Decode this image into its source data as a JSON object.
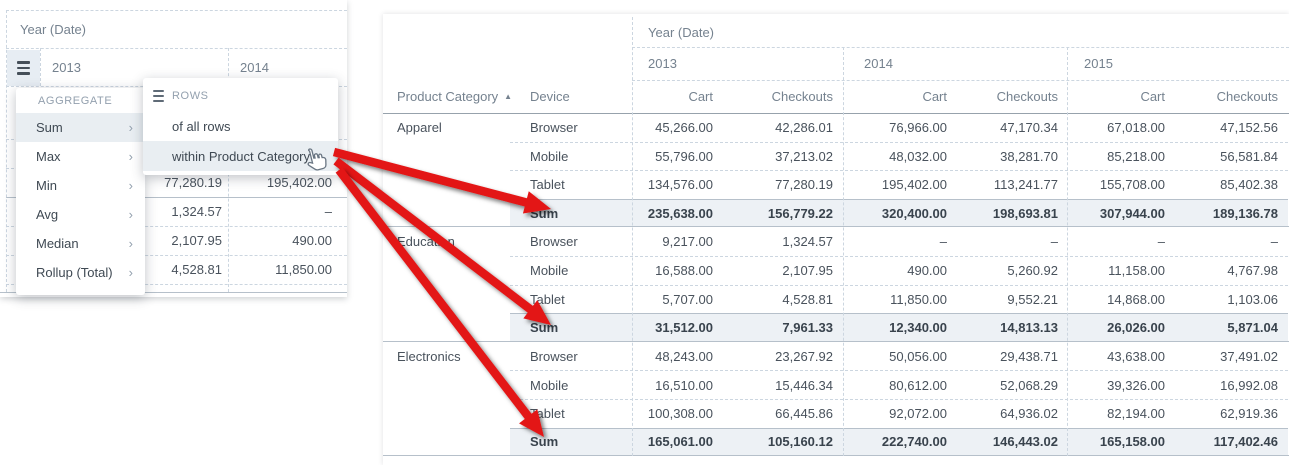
{
  "icons": {
    "menu_chevron": "›",
    "sort_ascending": "▲",
    "hamburger": "menu-bars",
    "rows": "rows-bars",
    "cursor": "pointing-hand"
  },
  "colors": {
    "arrow_red": "#e31414",
    "sum_row_bg": "#edf1f5",
    "menu_highlight_bg": "#e9eef2",
    "dashed_line": "#ccd6e0",
    "solid_line": "#b6c0ca",
    "header_text": "#75828f",
    "body_text": "#49525c"
  },
  "left_panel": {
    "field_label": "Year (Date)",
    "years": [
      "2013",
      "2014"
    ],
    "aggregate_menu": {
      "section_label": "AGGREGATE",
      "items": [
        {
          "label": "Sum",
          "selected": true
        },
        {
          "label": "Max",
          "selected": false
        },
        {
          "label": "Min",
          "selected": false
        },
        {
          "label": "Avg",
          "selected": false
        },
        {
          "label": "Median",
          "selected": false
        },
        {
          "label": "Rollup (Total)",
          "selected": false
        }
      ]
    },
    "rows_submenu": {
      "section_label": "ROWS",
      "items": [
        {
          "label": "of all rows",
          "hovered": false
        },
        {
          "label": "within Product Category",
          "hovered": true
        }
      ]
    },
    "visible_cells": [
      [
        "77,280.19",
        "195,402.00"
      ],
      [
        "1,324.57",
        "–"
      ],
      [
        "2,107.95",
        "490.00"
      ],
      [
        "4,528.81",
        "11,850.00"
      ]
    ]
  },
  "right_panel": {
    "field_label": "Year (Date)",
    "years": [
      "2013",
      "2014",
      "2015"
    ],
    "category_header": "Product Category",
    "device_header": "Device",
    "measure_headers": [
      "Cart",
      "Checkouts"
    ],
    "groups": [
      {
        "category": "Apparel",
        "rows": [
          {
            "device": "Browser",
            "is_sum": false,
            "values": [
              "45,266.00",
              "42,286.01",
              "76,966.00",
              "47,170.34",
              "67,018.00",
              "47,152.56"
            ]
          },
          {
            "device": "Mobile",
            "is_sum": false,
            "values": [
              "55,796.00",
              "37,213.02",
              "48,032.00",
              "38,281.70",
              "85,218.00",
              "56,581.84"
            ]
          },
          {
            "device": "Tablet",
            "is_sum": false,
            "values": [
              "134,576.00",
              "77,280.19",
              "195,402.00",
              "113,241.77",
              "155,708.00",
              "85,402.38"
            ]
          },
          {
            "device": "Sum",
            "is_sum": true,
            "values": [
              "235,638.00",
              "156,779.22",
              "320,400.00",
              "198,693.81",
              "307,944.00",
              "189,136.78"
            ]
          }
        ]
      },
      {
        "category": "Education",
        "rows": [
          {
            "device": "Browser",
            "is_sum": false,
            "values": [
              "9,217.00",
              "1,324.57",
              "–",
              "–",
              "–",
              "–"
            ]
          },
          {
            "device": "Mobile",
            "is_sum": false,
            "values": [
              "16,588.00",
              "2,107.95",
              "490.00",
              "5,260.92",
              "11,158.00",
              "4,767.98"
            ]
          },
          {
            "device": "Tablet",
            "is_sum": false,
            "values": [
              "5,707.00",
              "4,528.81",
              "11,850.00",
              "9,552.21",
              "14,868.00",
              "1,103.06"
            ]
          },
          {
            "device": "Sum",
            "is_sum": true,
            "values": [
              "31,512.00",
              "7,961.33",
              "12,340.00",
              "14,813.13",
              "26,026.00",
              "5,871.04"
            ]
          }
        ]
      },
      {
        "category": "Electronics",
        "rows": [
          {
            "device": "Browser",
            "is_sum": false,
            "values": [
              "48,243.00",
              "23,267.92",
              "50,056.00",
              "29,438.71",
              "43,638.00",
              "37,491.02"
            ]
          },
          {
            "device": "Mobile",
            "is_sum": false,
            "values": [
              "16,510.00",
              "15,446.34",
              "80,612.00",
              "52,068.29",
              "39,326.00",
              "16,992.08"
            ]
          },
          {
            "device": "Tablet",
            "is_sum": false,
            "values": [
              "100,308.00",
              "66,445.86",
              "92,072.00",
              "64,936.02",
              "82,194.00",
              "62,919.36"
            ]
          },
          {
            "device": "Sum",
            "is_sum": true,
            "values": [
              "165,061.00",
              "105,160.12",
              "222,740.00",
              "146,443.02",
              "165,158.00",
              "117,402.46"
            ]
          }
        ]
      }
    ]
  },
  "annotations": {
    "arrow_count": 3,
    "arrow_target_label": "Sum"
  }
}
